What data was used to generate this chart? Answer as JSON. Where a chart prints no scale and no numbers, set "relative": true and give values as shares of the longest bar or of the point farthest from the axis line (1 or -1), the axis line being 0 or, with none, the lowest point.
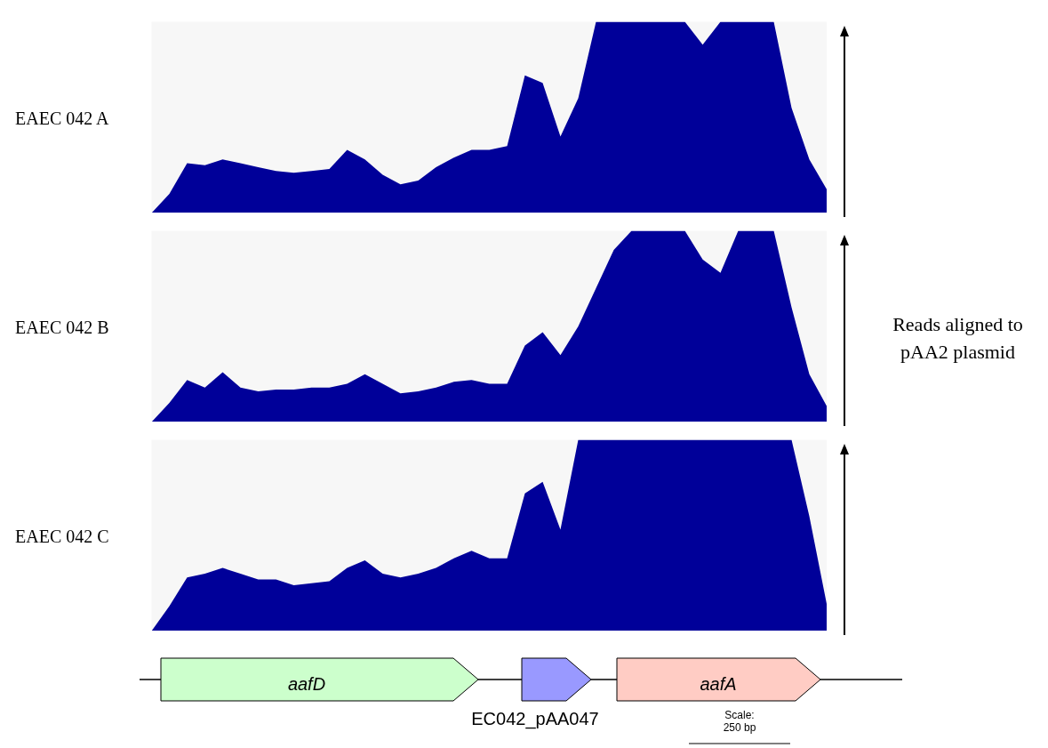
{
  "chart_data": [
    {
      "type": "area",
      "relative": true,
      "ylabel": "EAEC 042 A",
      "grid": false,
      "categories": [
        null,
        null,
        null,
        null,
        null,
        null,
        null,
        null,
        null,
        null,
        null,
        null,
        null,
        null,
        null,
        null,
        null,
        null,
        null,
        null,
        null,
        null,
        null,
        null,
        null,
        null,
        null,
        null,
        null,
        null,
        null,
        null,
        null,
        null,
        null,
        null,
        null,
        null,
        null
      ],
      "series": [
        {
          "color": "#000099",
          "values": [
            0,
            0.1,
            0.26,
            0.25,
            0.28,
            0.26,
            0.24,
            0.22,
            0.21,
            0.22,
            0.23,
            0.33,
            0.28,
            0.2,
            0.15,
            0.17,
            0.24,
            0.29,
            0.33,
            0.33,
            0.35,
            0.72,
            0.68,
            0.4,
            0.6,
            1,
            1,
            1,
            1,
            1,
            1,
            0.88,
            1,
            1,
            1,
            1,
            0.55,
            0.28,
            0.12
          ]
        }
      ]
    },
    {
      "type": "area",
      "relative": true,
      "ylabel": "EAEC 042 B",
      "grid": false,
      "annotations": [
        "Reads aligned to pAA2 plasmid"
      ],
      "categories": [
        null,
        null,
        null,
        null,
        null,
        null,
        null,
        null,
        null,
        null,
        null,
        null,
        null,
        null,
        null,
        null,
        null,
        null,
        null,
        null,
        null,
        null,
        null,
        null,
        null,
        null,
        null,
        null,
        null,
        null,
        null,
        null,
        null,
        null,
        null,
        null,
        null,
        null,
        null
      ],
      "series": [
        {
          "color": "#000099",
          "values": [
            0,
            0.1,
            0.22,
            0.18,
            0.26,
            0.18,
            0.16,
            0.17,
            0.17,
            0.18,
            0.18,
            0.2,
            0.25,
            0.2,
            0.15,
            0.16,
            0.18,
            0.21,
            0.22,
            0.2,
            0.2,
            0.4,
            0.47,
            0.35,
            0.5,
            0.7,
            0.9,
            1,
            1,
            1,
            1,
            0.85,
            0.78,
            1,
            1,
            1,
            0.6,
            0.25,
            0.08
          ]
        }
      ]
    },
    {
      "type": "area",
      "relative": true,
      "ylabel": "EAEC 042 C",
      "grid": false,
      "annotations": [
        "aafD",
        "EC042_pAA047",
        "aafA",
        "Scale:\n250 bp"
      ],
      "categories": [
        null,
        null,
        null,
        null,
        null,
        null,
        null,
        null,
        null,
        null,
        null,
        null,
        null,
        null,
        null,
        null,
        null,
        null,
        null,
        null,
        null,
        null,
        null,
        null,
        null,
        null,
        null,
        null,
        null,
        null,
        null,
        null,
        null,
        null,
        null,
        null,
        null,
        null,
        null
      ],
      "series": [
        {
          "color": "#000099",
          "values": [
            0,
            0.13,
            0.28,
            0.3,
            0.33,
            0.3,
            0.27,
            0.27,
            0.24,
            0.25,
            0.26,
            0.33,
            0.37,
            0.3,
            0.28,
            0.3,
            0.33,
            0.38,
            0.42,
            0.38,
            0.38,
            0.72,
            0.78,
            0.53,
            1,
            1,
            1,
            1,
            1,
            1,
            1,
            1,
            1,
            1,
            1,
            1,
            1,
            0.6,
            0.13
          ]
        }
      ]
    }
  ]
}
